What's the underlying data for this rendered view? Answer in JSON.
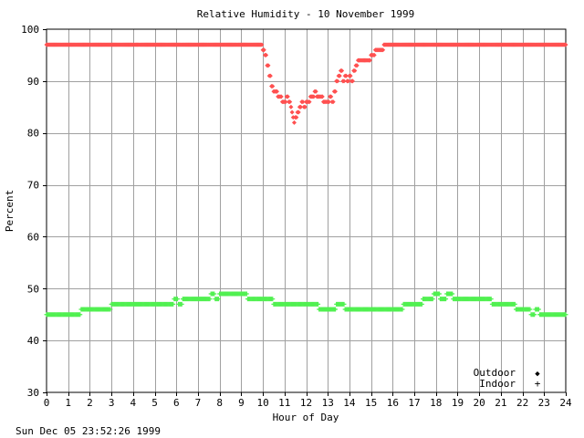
{
  "chart_data": {
    "type": "scatter",
    "title": "Relative Humidity - 10 November 1999",
    "xlabel": "Hour of Day",
    "ylabel": "Percent",
    "xlim": [
      0,
      24
    ],
    "ylim": [
      30,
      100
    ],
    "x_ticks": [
      0,
      1,
      2,
      3,
      4,
      5,
      6,
      7,
      8,
      9,
      10,
      11,
      12,
      13,
      14,
      15,
      16,
      17,
      18,
      19,
      20,
      21,
      22,
      23,
      24
    ],
    "y_ticks": [
      30,
      40,
      50,
      60,
      70,
      80,
      90,
      100
    ],
    "grid": true,
    "legend_position": "bottom-right",
    "series": [
      {
        "name": "Outdoor",
        "marker": "◆",
        "color": "#ff5050",
        "points": [
          [
            0,
            97
          ],
          [
            4.0,
            97
          ],
          [
            4.1,
            97
          ],
          [
            4.3,
            97
          ],
          [
            9.9,
            97
          ],
          [
            10.0,
            96
          ],
          [
            10.1,
            95
          ],
          [
            10.2,
            93
          ],
          [
            10.3,
            91
          ],
          [
            10.4,
            89
          ],
          [
            10.5,
            88
          ],
          [
            10.7,
            87
          ],
          [
            10.9,
            86
          ],
          [
            11.0,
            86
          ],
          [
            11.1,
            87
          ],
          [
            11.2,
            86
          ],
          [
            11.3,
            85
          ],
          [
            11.35,
            84
          ],
          [
            11.4,
            83
          ],
          [
            11.45,
            82
          ],
          [
            11.5,
            83
          ],
          [
            11.6,
            84
          ],
          [
            11.7,
            85
          ],
          [
            11.8,
            86
          ],
          [
            11.9,
            85
          ],
          [
            12.0,
            86
          ],
          [
            12.2,
            87
          ],
          [
            12.4,
            88
          ],
          [
            12.5,
            87
          ],
          [
            12.7,
            87
          ],
          [
            12.8,
            86
          ],
          [
            13.0,
            86
          ],
          [
            13.1,
            87
          ],
          [
            13.2,
            86
          ],
          [
            13.3,
            88
          ],
          [
            13.4,
            90
          ],
          [
            13.5,
            91
          ],
          [
            13.6,
            92
          ],
          [
            13.7,
            90
          ],
          [
            13.8,
            91
          ],
          [
            13.9,
            90
          ],
          [
            14.0,
            91
          ],
          [
            14.1,
            90
          ],
          [
            14.2,
            92
          ],
          [
            14.3,
            93
          ],
          [
            14.4,
            94
          ],
          [
            14.6,
            94
          ],
          [
            14.8,
            94
          ],
          [
            15.0,
            95
          ],
          [
            15.2,
            96
          ],
          [
            15.5,
            96
          ],
          [
            15.6,
            97
          ],
          [
            24.0,
            97
          ]
        ]
      },
      {
        "name": "Indoor",
        "marker": "+",
        "color": "#50f050",
        "points": [
          [
            0,
            45
          ],
          [
            1.5,
            45
          ],
          [
            1.6,
            46
          ],
          [
            2.9,
            46
          ],
          [
            3.0,
            47
          ],
          [
            4.0,
            47
          ],
          [
            4.3,
            47
          ],
          [
            5.8,
            47
          ],
          [
            5.9,
            48
          ],
          [
            6.1,
            47
          ],
          [
            6.3,
            48
          ],
          [
            7.5,
            48
          ],
          [
            7.6,
            49
          ],
          [
            7.8,
            48
          ],
          [
            8.0,
            49
          ],
          [
            9.2,
            49
          ],
          [
            9.3,
            48
          ],
          [
            10.4,
            48
          ],
          [
            10.5,
            47
          ],
          [
            12.5,
            47
          ],
          [
            12.6,
            46
          ],
          [
            13.3,
            46
          ],
          [
            13.4,
            47
          ],
          [
            13.7,
            47
          ],
          [
            13.8,
            46
          ],
          [
            16.4,
            46
          ],
          [
            16.5,
            47
          ],
          [
            17.3,
            47
          ],
          [
            17.4,
            48
          ],
          [
            17.8,
            48
          ],
          [
            17.9,
            49
          ],
          [
            18.2,
            48
          ],
          [
            18.5,
            49
          ],
          [
            18.8,
            48
          ],
          [
            20.5,
            48
          ],
          [
            20.6,
            47
          ],
          [
            21.6,
            47
          ],
          [
            21.7,
            46
          ],
          [
            22.3,
            46
          ],
          [
            22.4,
            45
          ],
          [
            22.6,
            46
          ],
          [
            22.8,
            45
          ],
          [
            24.0,
            45
          ]
        ]
      }
    ]
  },
  "footer": {
    "timestamp": "Sun Dec 05 23:52:26 1999"
  }
}
